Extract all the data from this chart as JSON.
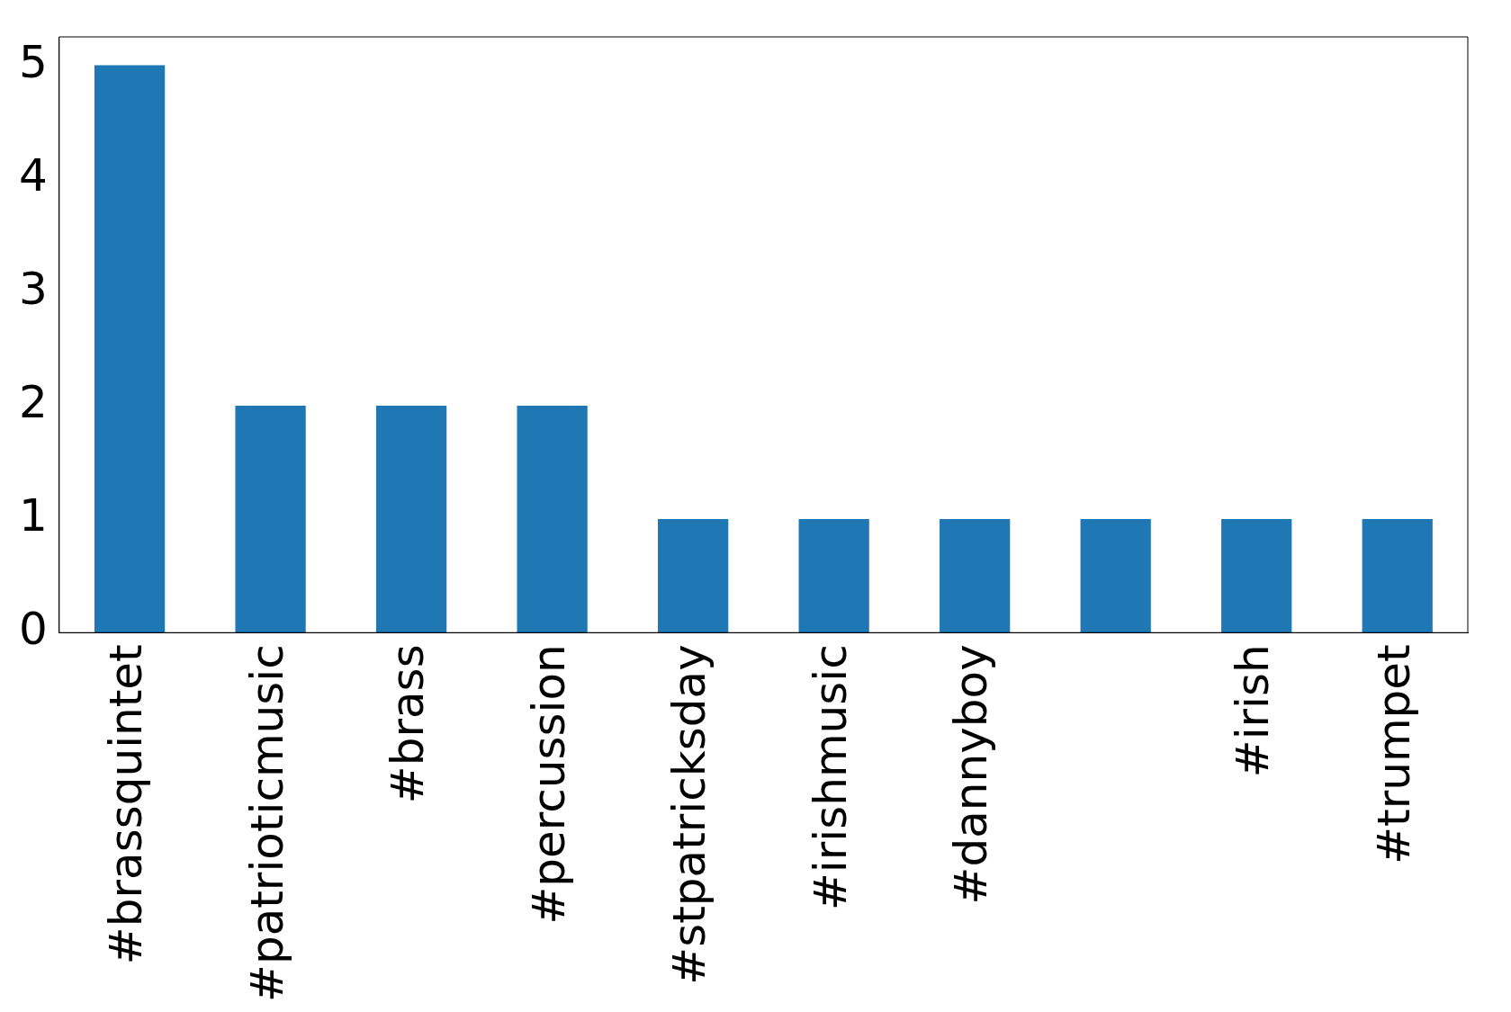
{
  "chart_data": {
    "type": "bar",
    "categories": [
      "#brassquintet",
      "#patrioticmusic",
      "#brass",
      "#percussion",
      "#stpatricksday",
      "#irishmusic",
      "#dannyboy",
      null,
      "#irish",
      "#trumpet"
    ],
    "values": [
      5,
      2,
      2,
      2,
      1,
      1,
      1,
      1,
      1,
      1
    ],
    "color": "#1f77b4",
    "ylim": [
      0,
      5.25
    ],
    "yticks": [
      0,
      1,
      2,
      3,
      4,
      5
    ],
    "grid": false,
    "legend": false
  }
}
